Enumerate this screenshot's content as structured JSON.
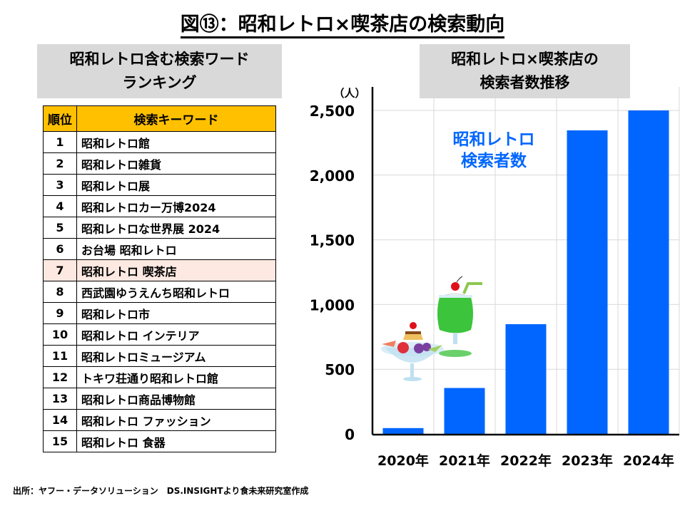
{
  "title": "図⑬：昭和レトロ×喫茶店の検索動向",
  "ranking": {
    "heading_line1": "昭和レトロ含む検索ワード",
    "heading_line2": "ランキング",
    "columns": [
      "順位",
      "検索キーワード"
    ],
    "highlight_rank": "7",
    "rows": [
      [
        "1",
        "昭和レトロ館"
      ],
      [
        "2",
        "昭和レトロ雑貨"
      ],
      [
        "3",
        "昭和レトロ展"
      ],
      [
        "4",
        "昭和レトロカー万博2024"
      ],
      [
        "5",
        "昭和レトロな世界展 2024"
      ],
      [
        "6",
        "お台場 昭和レトロ"
      ],
      [
        "7",
        "昭和レトロ 喫茶店"
      ],
      [
        "8",
        "西武園ゆうえんち昭和レトロ"
      ],
      [
        "9",
        "昭和レトロ市"
      ],
      [
        "10",
        "昭和レトロ インテリア"
      ],
      [
        "11",
        "昭和レトロミュージアム"
      ],
      [
        "12",
        "トキワ荘通り昭和レトロ館"
      ],
      [
        "13",
        "昭和レトロ商品博物館"
      ],
      [
        "14",
        "昭和レトロ ファッション"
      ],
      [
        "15",
        "昭和レトロ 食器"
      ]
    ]
  },
  "chart_heading_line1": "昭和レトロ×喫茶店の",
  "chart_heading_line2": "検索者数推移",
  "chart_data": {
    "type": "bar",
    "categories": [
      "2020年",
      "2021年",
      "2022年",
      "2023年",
      "2024年"
    ],
    "values": [
      45,
      355,
      848,
      2346,
      2500
    ],
    "ylabel": "（人）",
    "ylim": [
      0,
      2500
    ],
    "yticks": [
      0,
      500,
      1000,
      1500,
      2000,
      2500
    ],
    "ytick_labels": [
      "0",
      "500",
      "1,000",
      "1,500",
      "2,000",
      "2,500"
    ],
    "annotation_line1": "昭和レトロ",
    "annotation_line2": "検索者数",
    "bar_color": "#0066ff",
    "grid": true
  },
  "source": "出所：ヤフー・データソリューション　DS.INSIGHTより食未来研究室作成"
}
